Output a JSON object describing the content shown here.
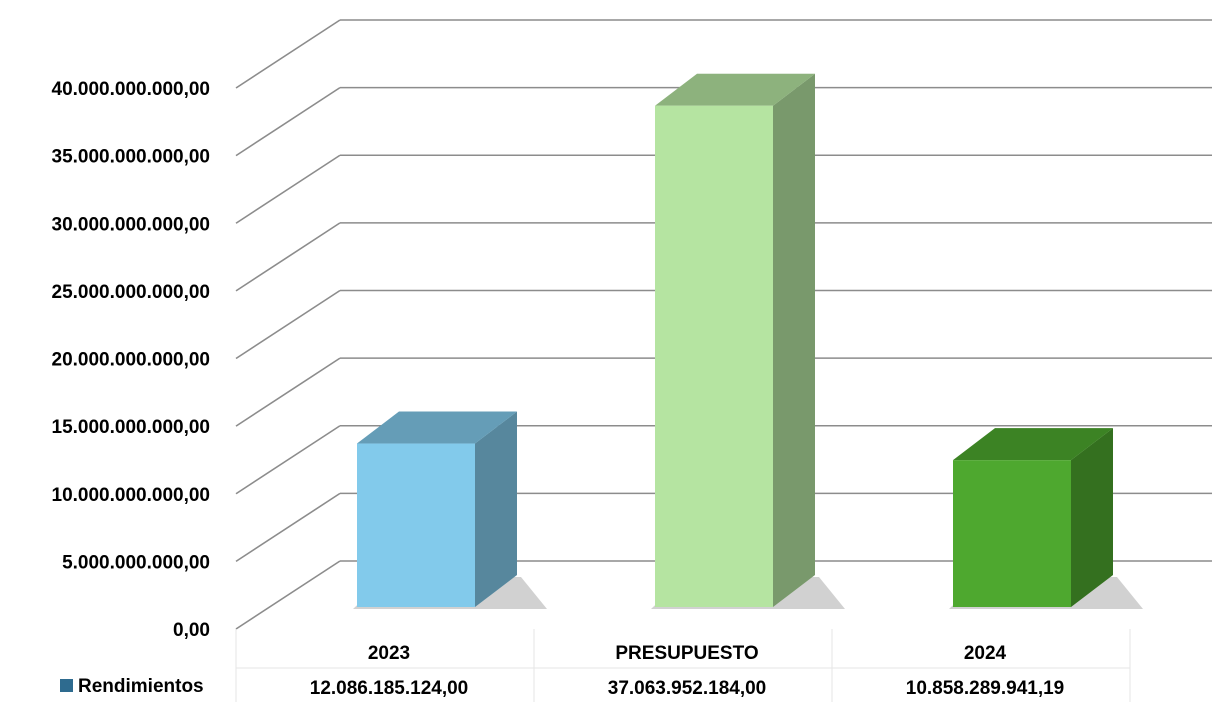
{
  "chart_data": {
    "type": "bar",
    "title": "",
    "xlabel": "",
    "ylabel": "",
    "ylim": [
      0,
      40000000000
    ],
    "y_ticks": [
      0,
      5000000000,
      10000000000,
      15000000000,
      20000000000,
      25000000000,
      30000000000,
      35000000000,
      40000000000
    ],
    "y_tick_labels": [
      "0,00",
      "5.000.000.000,00",
      "10.000.000.000,00",
      "15.000.000.000,00",
      "20.000.000.000,00",
      "25.000.000.000,00",
      "30.000.000.000,00",
      "35.000.000.000,00",
      "40.000.000.000,00"
    ],
    "categories": [
      "2023",
      "PRESUPUESTO",
      "2024"
    ],
    "series": [
      {
        "name": "Rendimientos",
        "values": [
          12086185124.0,
          37063952184.0,
          10858289941.19
        ],
        "value_labels": [
          "12.086.185.124,00",
          "37.063.952.184,00",
          "10.858.289.941,19"
        ],
        "colors": [
          "#82CAEB",
          "#B5E4A1",
          "#4EA82F"
        ],
        "legend_color": "#2E6B8F"
      }
    ],
    "grid": true,
    "data_table": true,
    "style": "3d-column"
  }
}
